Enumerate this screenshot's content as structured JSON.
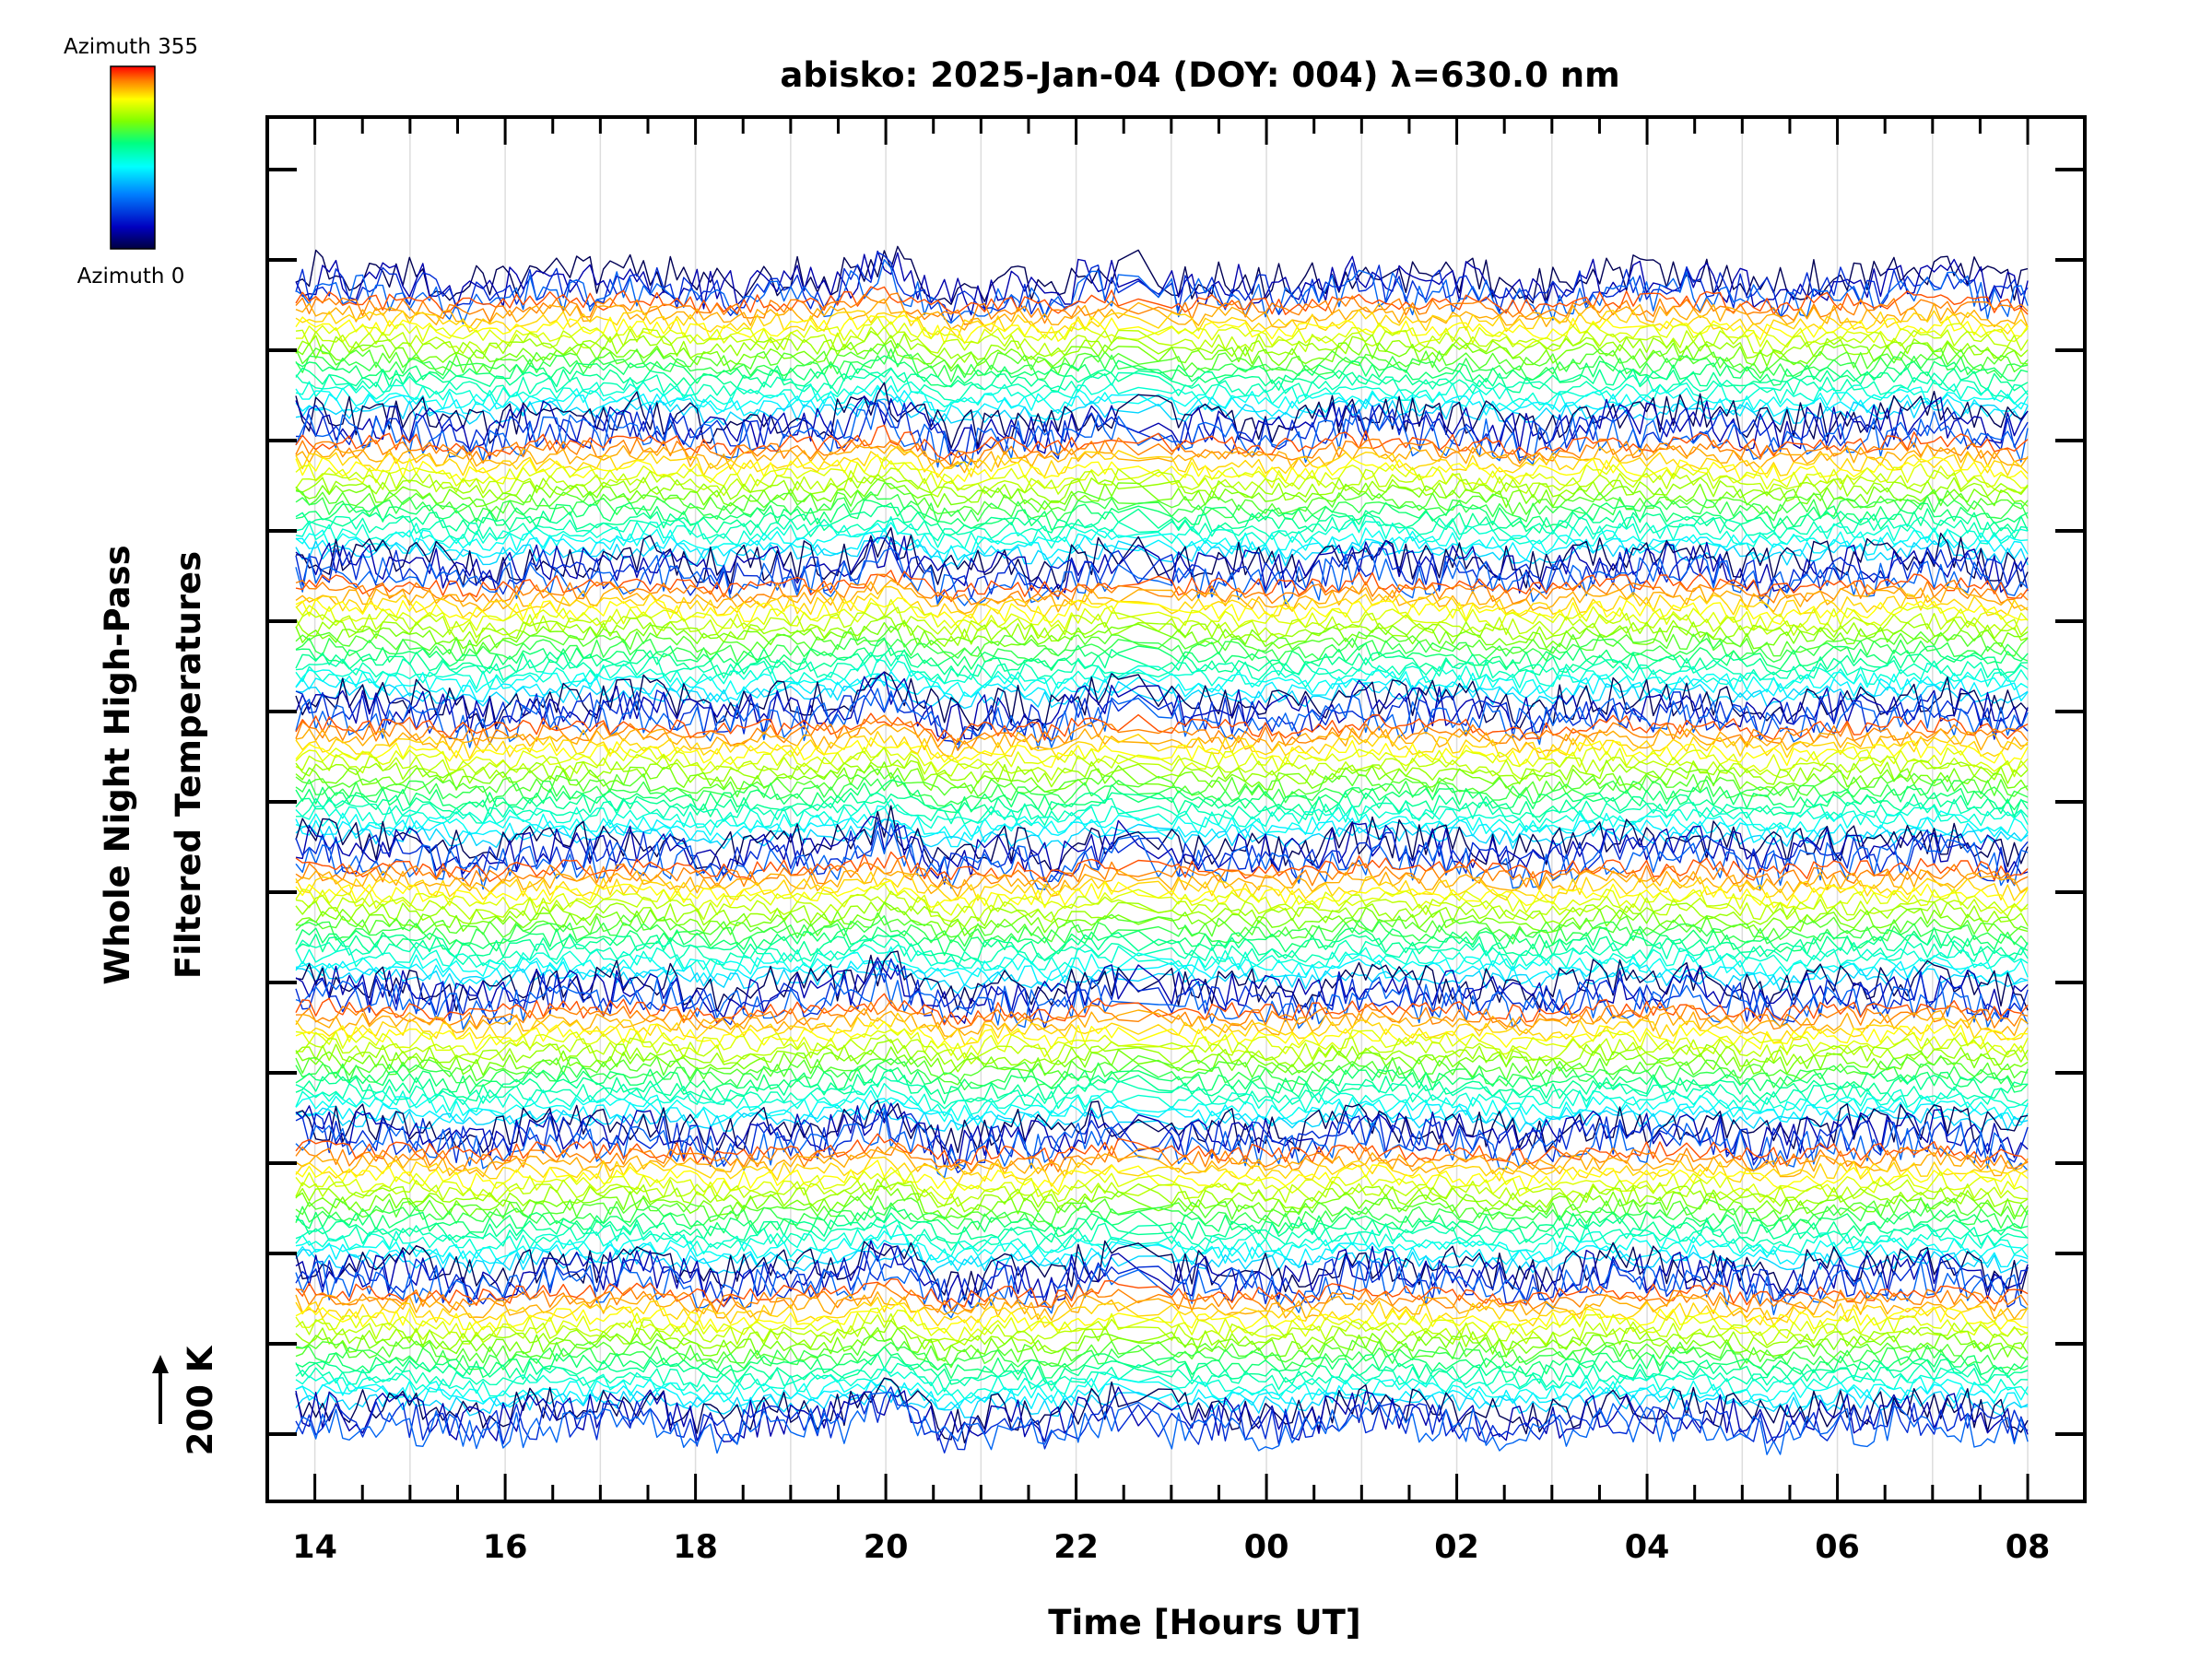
{
  "chart_data": {
    "type": "line",
    "title": "abisko: 2025-Jan-04 (DOY: 004) λ=630.0 nm",
    "xlabel": "Time [Hours UT]",
    "ylabel_line1": "Whole Night High-Pass",
    "ylabel_line2": "Filtered Temperatures",
    "x_tick_labels": [
      "14",
      "16",
      "18",
      "20",
      "22",
      "00",
      "02",
      "04",
      "06",
      "08"
    ],
    "x_start_hour": 13.5,
    "x_end_hour": 32.6,
    "data_start_hour": 13.8,
    "data_end_hour": 32.0,
    "scale_label": "200 K",
    "scale_arrow": "↑",
    "colorbar": {
      "top_label": "Azimuth 355",
      "bottom_label": "Azimuth 0",
      "colors": [
        "#ff0000",
        "#ff8000",
        "#ffff00",
        "#80ff00",
        "#00ff80",
        "#00ffff",
        "#0080ff",
        "#0000c0",
        "#000040"
      ]
    },
    "series_count": 180,
    "series_groups": 8,
    "series_per_group": 22,
    "azimuth_range": [
      0,
      355
    ],
    "grid": true,
    "gap_hours": [
      22.4,
      23.0
    ]
  }
}
